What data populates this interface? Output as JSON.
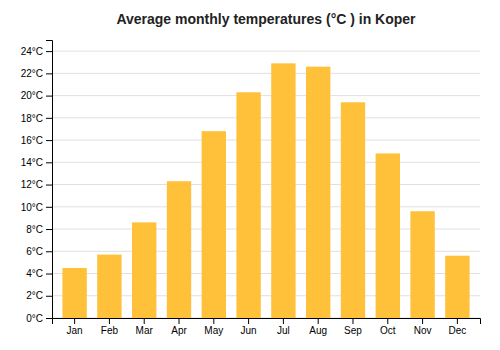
{
  "chart_data": {
    "type": "bar",
    "title": "Average monthly temperatures (°C ) in Koper",
    "categories": [
      "Jan",
      "Feb",
      "Mar",
      "Apr",
      "May",
      "Jun",
      "Jul",
      "Aug",
      "Sep",
      "Oct",
      "Nov",
      "Dec"
    ],
    "values": [
      4.5,
      5.7,
      8.6,
      12.3,
      16.8,
      20.3,
      22.9,
      22.6,
      19.4,
      14.8,
      9.6,
      5.6
    ],
    "color": "#FFC03A",
    "ylim": [
      0,
      25
    ],
    "yticks": [
      {
        "value": 0,
        "label": "0°C"
      },
      {
        "value": 2,
        "label": "2°C"
      },
      {
        "value": 4,
        "label": "4°C"
      },
      {
        "value": 6,
        "label": "6°C"
      },
      {
        "value": 8,
        "label": "8°C"
      },
      {
        "value": 10,
        "label": "10°C"
      },
      {
        "value": 12,
        "label": "12°C"
      },
      {
        "value": 14,
        "label": "14°C"
      },
      {
        "value": 16,
        "label": "16°C"
      },
      {
        "value": 18,
        "label": "18°C"
      },
      {
        "value": 20,
        "label": "20°C"
      },
      {
        "value": 22,
        "label": "22°C"
      },
      {
        "value": 24,
        "label": "24°C"
      }
    ],
    "grid": true
  }
}
